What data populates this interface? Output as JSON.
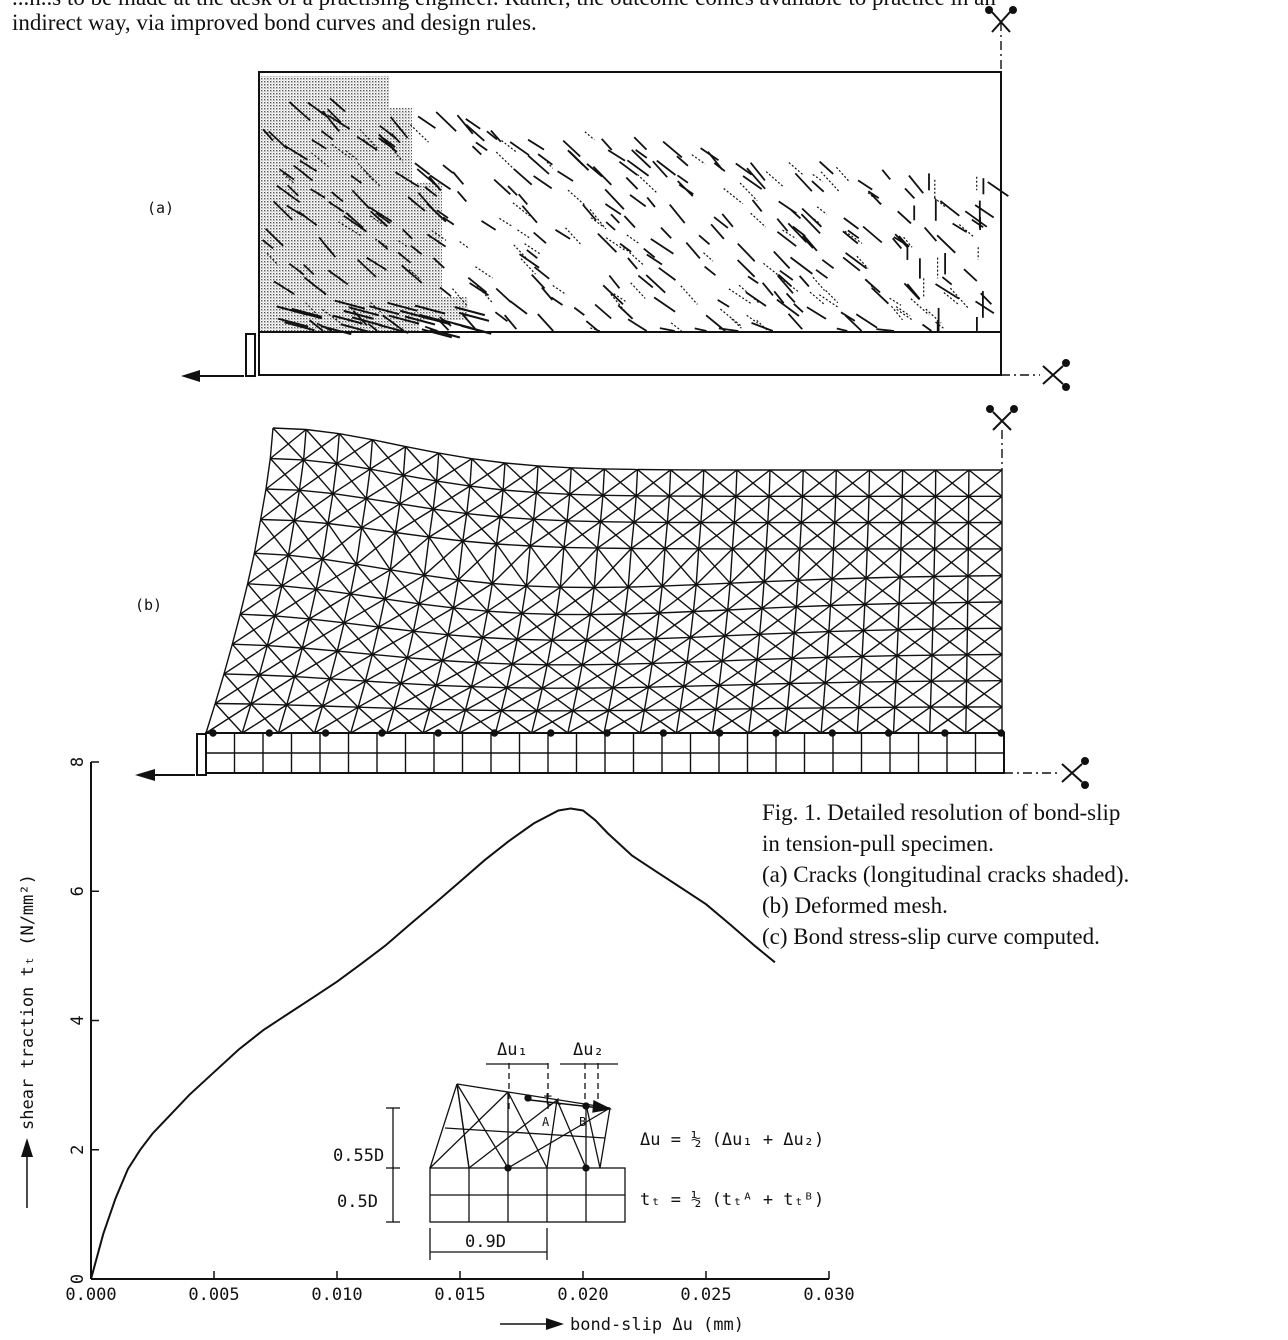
{
  "page_text": {
    "line_cut": "...n..s to be made at the desk of a practising engineer. Rather, the outcome comes available to practice in an",
    "line2": "indirect way, via improved bond curves and design rules."
  },
  "figure": {
    "panel_a_label": "(a)",
    "panel_b_label": "(b)",
    "caption": {
      "title": "Fig. 1.  Detailed resolution of bond-slip",
      "title_cont": "in tension-pull specimen.",
      "item_a": "(a) Cracks (longitudinal cracks shaded).",
      "item_b": "(b) Deformed mesh.",
      "item_c": "(c) Bond stress-slip curve computed."
    },
    "inset": {
      "du1": "Δu₁",
      "du2": "Δu₂",
      "tt": "tₜ",
      "pointA": "A",
      "pointB": "B",
      "dim_055": "0.55D",
      "dim_05": "0.5D",
      "dim_09": "0.9D",
      "eq_du": "Δu = ½ (Δu₁ + Δu₂)",
      "eq_tt": "tₜ = ½ (tₜᴬ + tₜᴮ)"
    }
  },
  "chart_data": {
    "type": "line",
    "xlabel": "bond-slip  Δu (mm)",
    "ylabel": "shear traction tₜ (N/mm²)",
    "xlim": [
      0.0,
      0.03
    ],
    "ylim": [
      0,
      8
    ],
    "x_ticks": [
      "0.000",
      "0.005",
      "0.010",
      "0.015",
      "0.020",
      "0.025",
      "0.030"
    ],
    "y_ticks": [
      "0",
      "2",
      "4",
      "6",
      "8"
    ],
    "x_tick_values": [
      0,
      0.005,
      0.01,
      0.015,
      0.02,
      0.025,
      0.03
    ],
    "y_tick_values": [
      0,
      2,
      4,
      6,
      8
    ],
    "x": [
      0.0,
      0.0005,
      0.001,
      0.0015,
      0.002,
      0.0025,
      0.003,
      0.004,
      0.005,
      0.006,
      0.007,
      0.008,
      0.009,
      0.01,
      0.011,
      0.012,
      0.013,
      0.014,
      0.015,
      0.016,
      0.017,
      0.018,
      0.019,
      0.0195,
      0.02,
      0.0205,
      0.021,
      0.022,
      0.023,
      0.024,
      0.025,
      0.026,
      0.027,
      0.0278
    ],
    "y": [
      0.0,
      0.7,
      1.25,
      1.7,
      2.0,
      2.25,
      2.45,
      2.85,
      3.2,
      3.55,
      3.85,
      4.1,
      4.35,
      4.6,
      4.88,
      5.17,
      5.5,
      5.82,
      6.15,
      6.48,
      6.78,
      7.05,
      7.25,
      7.28,
      7.25,
      7.1,
      6.9,
      6.55,
      6.3,
      6.05,
      5.8,
      5.48,
      5.15,
      4.9
    ]
  }
}
